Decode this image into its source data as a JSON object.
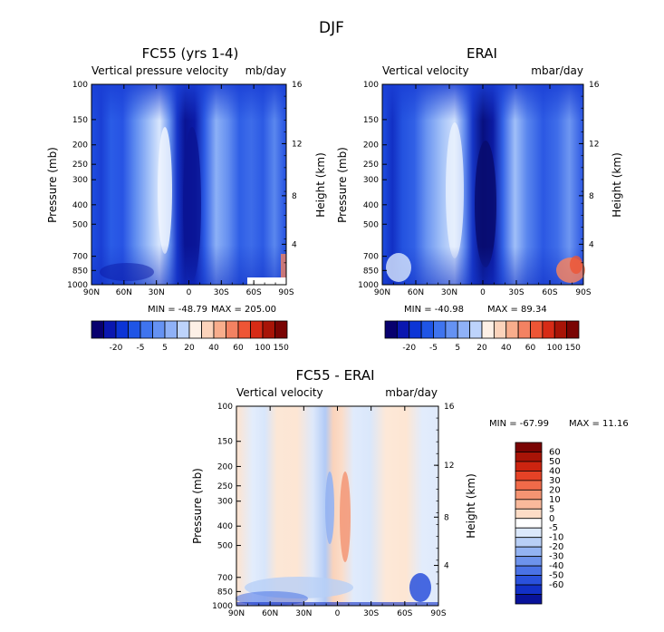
{
  "figure": {
    "title": "DJF"
  },
  "panels": [
    {
      "id": "fc55",
      "title": "FC55 (yrs 1-4)",
      "left_label": "Vertical pressure velocity",
      "right_label": "mb/day",
      "min_label": "MIN = -48.79",
      "max_label": "MAX = 205.00"
    },
    {
      "id": "erai",
      "title": "ERAI",
      "left_label": "Vertical velocity",
      "right_label": "mbar/day",
      "min_label": "MIN = -40.98",
      "max_label": "MAX =  89.34"
    },
    {
      "id": "diff",
      "title": "FC55 - ERAI",
      "left_label": "Vertical velocity",
      "right_label": "mbar/day",
      "min_label": "MIN = -67.99",
      "max_label": "MAX =  11.16"
    }
  ],
  "axes": {
    "ylabel": "Pressure (mb)",
    "y2label": "Height (km)",
    "x_ticks": [
      "90N",
      "60N",
      "30N",
      "0",
      "30S",
      "60S",
      "90S"
    ],
    "y_ticks": [
      "100",
      "150",
      "200",
      "250",
      "300",
      "400",
      "500",
      "700",
      "850",
      "1000"
    ],
    "y2_ticks": [
      "16",
      "12",
      "8",
      "4"
    ]
  },
  "colorbar_full": {
    "labels": [
      "-20",
      "-5",
      "5",
      "20",
      "40",
      "60",
      "100",
      "150"
    ],
    "colors": [
      "#08006e",
      "#0a17b0",
      "#0c35d6",
      "#1f55e6",
      "#3f74ef",
      "#6592f3",
      "#8fb1f7",
      "#bdd3fb",
      "#fdf0e6",
      "#fbd3bb",
      "#f8ad8c",
      "#f38262",
      "#ee5535",
      "#d72b16",
      "#a81407",
      "#7a0403"
    ]
  },
  "colorbar_diff": {
    "labels": [
      "60",
      "50",
      "40",
      "30",
      "20",
      "10",
      "5",
      "0",
      "-5",
      "-10",
      "-20",
      "-30",
      "-40",
      "-50",
      "-60"
    ],
    "colors": [
      "#7a0403",
      "#a81407",
      "#cc2410",
      "#e54226",
      "#f06a49",
      "#f59472",
      "#f9b99b",
      "#fddcc6",
      "#ffffff",
      "#dbe8fb",
      "#b8cff6",
      "#93b3f2",
      "#6d93ec",
      "#4a72e6",
      "#2a51dc",
      "#1230c7",
      "#08129a"
    ]
  },
  "chart_data": [
    {
      "type": "heatmap",
      "title": "FC55 (yrs 1-4)",
      "xlabel": "",
      "ylabel": "Pressure (mb)",
      "y2label": "Height (km)",
      "x": [
        90,
        60,
        30,
        0,
        -30,
        -60,
        -90
      ],
      "y": [
        100,
        150,
        200,
        250,
        300,
        400,
        500,
        700,
        850,
        1000
      ],
      "value_range": [
        -48.79,
        205.0
      ]
    },
    {
      "type": "heatmap",
      "title": "ERAI",
      "xlabel": "",
      "ylabel": "Pressure (mb)",
      "y2label": "Height (km)",
      "x": [
        90,
        60,
        30,
        0,
        -30,
        -60,
        -90
      ],
      "y": [
        100,
        150,
        200,
        250,
        300,
        400,
        500,
        700,
        850,
        1000
      ],
      "value_range": [
        -40.98,
        89.34
      ]
    },
    {
      "type": "heatmap",
      "title": "FC55 - ERAI",
      "xlabel": "",
      "ylabel": "Pressure (mb)",
      "y2label": "Height (km)",
      "x": [
        90,
        60,
        30,
        0,
        -30,
        -60,
        -90
      ],
      "y": [
        100,
        150,
        200,
        250,
        300,
        400,
        500,
        700,
        850,
        1000
      ],
      "value_range": [
        -67.99,
        11.16
      ]
    }
  ]
}
